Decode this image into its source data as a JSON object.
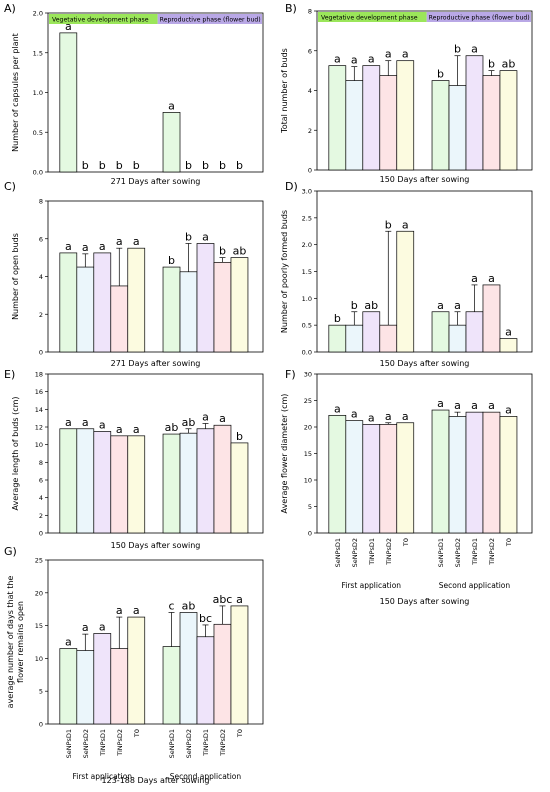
{
  "groups": [
    "First application",
    "Second application"
  ],
  "treatments": [
    "SeNPsD1",
    "SeNPsD2",
    "TiNPsD1",
    "TiNPsD2",
    "T0"
  ],
  "phase_legend": [
    "Vegetative development phase",
    "Reproductive phase (flower bud)"
  ],
  "colors": {
    "treatments": [
      "#e4f9e1",
      "#ebf6fb",
      "#efe4fa",
      "#fde4e6",
      "#fcfbe0"
    ],
    "legend": [
      "#9be65a",
      "#b9a8e6"
    ],
    "frame": "#000000"
  },
  "chart_data": [
    {
      "panel": "A)",
      "type": "bar",
      "ylabel": "Number of capsules per plant",
      "xlabel": "271 Days after sowing",
      "ylim": [
        0,
        2.0
      ],
      "yticks": [
        0.0,
        0.5,
        1.0,
        1.5,
        2.0
      ],
      "series": [
        {
          "values": [
            1.75,
            0,
            0,
            0,
            0
          ],
          "errors": [
            0,
            0,
            0,
            0,
            0
          ],
          "letters": [
            "a",
            "b",
            "b",
            "b",
            "b"
          ]
        },
        {
          "values": [
            0.75,
            0,
            0,
            0,
            0
          ],
          "errors": [
            0,
            0,
            0,
            0,
            0
          ],
          "letters": [
            "a",
            "b",
            "b",
            "b",
            "b"
          ]
        }
      ],
      "legend": true
    },
    {
      "panel": "B)",
      "type": "bar",
      "ylabel": "Total number of buds",
      "xlabel": "150 Days after sowing",
      "ylim": [
        0,
        8
      ],
      "yticks": [
        0,
        2,
        4,
        6,
        8
      ],
      "series": [
        {
          "values": [
            5.25,
            4.5,
            5.25,
            4.75,
            5.5
          ],
          "errors": [
            0,
            0.7,
            0,
            0.75,
            0
          ],
          "letters": [
            "a",
            "a",
            "a",
            "a",
            "a"
          ]
        },
        {
          "values": [
            4.5,
            4.25,
            5.75,
            4.75,
            5.0
          ],
          "errors": [
            0,
            1.5,
            0,
            0.25,
            0
          ],
          "letters": [
            "b",
            "b",
            "a",
            "b",
            "ab"
          ]
        }
      ],
      "legend": true
    },
    {
      "panel": "C)",
      "type": "bar",
      "ylabel": "Number of open buds",
      "xlabel": "271 Days after sowing",
      "ylim": [
        0,
        8
      ],
      "yticks": [
        0,
        2,
        4,
        6,
        8
      ],
      "series": [
        {
          "values": [
            5.25,
            4.5,
            5.25,
            3.5,
            5.5
          ],
          "errors": [
            0,
            0.7,
            0,
            2.0,
            0
          ],
          "letters": [
            "a",
            "a",
            "a",
            "a",
            "a"
          ]
        },
        {
          "values": [
            4.5,
            4.25,
            5.75,
            4.75,
            5.0
          ],
          "errors": [
            0,
            1.5,
            0,
            0.25,
            0
          ],
          "letters": [
            "b",
            "b",
            "a",
            "b",
            "ab"
          ]
        }
      ],
      "legend": false
    },
    {
      "panel": "D)",
      "type": "bar",
      "ylabel": "Number of poorly formed buds",
      "xlabel": "150 Days after sowing",
      "ylim": [
        0,
        3.0
      ],
      "yticks": [
        0.0,
        0.5,
        1.0,
        1.5,
        2.0,
        2.5,
        3.0
      ],
      "series": [
        {
          "values": [
            0.5,
            0.5,
            0.75,
            0.5,
            2.25
          ],
          "errors": [
            0,
            0.25,
            0,
            1.75,
            0
          ],
          "letters": [
            "b",
            "b",
            "ab",
            "b",
            "a"
          ]
        },
        {
          "values": [
            0.75,
            0.5,
            0.75,
            1.25,
            0.25
          ],
          "errors": [
            0,
            0.25,
            0.5,
            0,
            0
          ],
          "letters": [
            "a",
            "a",
            "a",
            "a",
            "a"
          ]
        }
      ],
      "legend": false
    },
    {
      "panel": "E)",
      "type": "bar",
      "ylabel": "Average length of buds (cm)",
      "xlabel": "150 Days after sowing",
      "ylim": [
        0,
        18
      ],
      "yticks": [
        0,
        2,
        4,
        6,
        8,
        10,
        12,
        14,
        16,
        18
      ],
      "series": [
        {
          "values": [
            11.8,
            11.8,
            11.5,
            11.0,
            11.0
          ],
          "errors": [
            0,
            0,
            0,
            0,
            0
          ],
          "letters": [
            "a",
            "a",
            "a",
            "a",
            "a"
          ]
        },
        {
          "values": [
            11.2,
            11.3,
            11.8,
            12.2,
            10.2
          ],
          "errors": [
            0,
            0.5,
            0.6,
            0,
            0
          ],
          "letters": [
            "ab",
            "ab",
            "a",
            "a",
            "b"
          ]
        }
      ],
      "legend": false
    },
    {
      "panel": "F)",
      "type": "bar",
      "ylabel": "Average flower diameter  (cm)",
      "xlabel": "150 Days after sowing",
      "ylim": [
        0,
        30
      ],
      "yticks": [
        0,
        5,
        10,
        15,
        20,
        25,
        30
      ],
      "series": [
        {
          "values": [
            22.2,
            21.2,
            20.5,
            20.5,
            20.8
          ],
          "errors": [
            0,
            0,
            0,
            0.3,
            0
          ],
          "letters": [
            "a",
            "a",
            "a",
            "a",
            "a"
          ]
        },
        {
          "values": [
            23.2,
            22.0,
            22.8,
            22.8,
            22.0
          ],
          "errors": [
            0,
            0.8,
            0,
            0,
            0
          ],
          "letters": [
            "a",
            "a",
            "a",
            "a",
            "a"
          ]
        }
      ],
      "legend": false,
      "tick_labels": true
    },
    {
      "panel": "G)",
      "type": "bar",
      "ylabel": "average number of days that the flower remains open",
      "xlabel": "123-188 Days after sowing",
      "ylim": [
        0,
        25
      ],
      "yticks": [
        0,
        5,
        10,
        15,
        20,
        25
      ],
      "series": [
        {
          "values": [
            11.5,
            11.2,
            13.8,
            11.5,
            16.3
          ],
          "errors": [
            0,
            2.5,
            0,
            4.8,
            0
          ],
          "letters": [
            "a",
            "a",
            "a",
            "a",
            "a"
          ]
        },
        {
          "values": [
            11.8,
            17.0,
            13.3,
            15.2,
            18.0
          ],
          "errors": [
            5.2,
            0,
            1.8,
            2.8,
            0
          ],
          "letters": [
            "c",
            "ab",
            "bc",
            "abc",
            "a"
          ]
        }
      ],
      "legend": false,
      "tick_labels": true
    }
  ]
}
